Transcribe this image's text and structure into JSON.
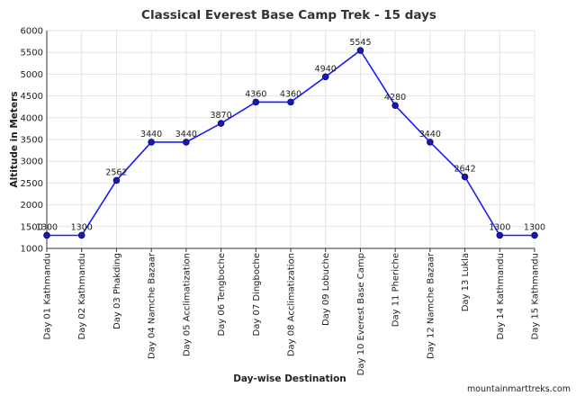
{
  "chart_data": {
    "type": "line",
    "title": "Classical Everest Base Camp Trek - 15 days",
    "xlabel": "Day-wise Destination",
    "ylabel": "Altitude in Meters",
    "ylim": [
      1000,
      6000
    ],
    "yticks": [
      1000,
      1500,
      2000,
      2500,
      3000,
      3500,
      4000,
      4500,
      5000,
      5500,
      6000
    ],
    "grid": "horizontal and vertical",
    "categories": [
      "Day 01 Kathmandu",
      "Day 02 Kathmandu",
      "Day 03 Phakding",
      "Day 04 Namche Bazaar",
      "Day 05 Acclimatization",
      "Day 06 Tengboche",
      "Day 07 Dingboche",
      "Day 08 Acclimatization",
      "Day 09 Lobuche",
      "Day 10 Everest Base Camp",
      "Day 11 Pheriche",
      "Day 12 Namche Bazaar",
      "Day 13 Lukla",
      "Day 14 Kathmandu",
      "Day 15 Kathmandu"
    ],
    "series": [
      {
        "values": [
          1300,
          1300,
          2562,
          3440,
          3440,
          3870,
          4360,
          4360,
          4940,
          5545,
          4280,
          3440,
          2642,
          1300,
          1300
        ]
      }
    ],
    "line_color": "#1a1aff",
    "marker_color": "#1a1aa8",
    "credit": "mountainmarttreks.com"
  }
}
